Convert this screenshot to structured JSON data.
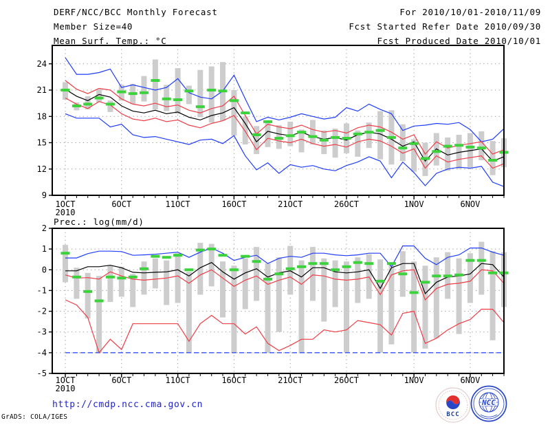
{
  "header": {
    "title": "DERF/NCC/BCC Monthly Forecast",
    "member_size": "Member Size=40",
    "for_range": "For 2010/10/01-2010/11/09",
    "fcst_started": "Fcst Started Refer Date 2010/09/30",
    "fcst_produced": "Fcst Produced Date 2010/10/01"
  },
  "footer": {
    "url": "http://cmdp.ncc.cma.gov.cn",
    "grads_credit": "GrADS: COLA/IGES",
    "logos": {
      "bcc_label": "BCC",
      "ncc_label": "NCC"
    }
  },
  "colors": {
    "blue": "#1e3cff",
    "red": "#f03c46",
    "black": "#000000",
    "green": "#3cd23c",
    "gray_bar": "#cdcdcd",
    "grid": "#999999",
    "url_blue": "#2222cc",
    "logo_blue": "#2846c8",
    "logo_red": "#e03030"
  },
  "chart_data": [
    {
      "type": "line",
      "title": "Mean Surf. Temp.: °C",
      "days": 40,
      "ylim": [
        9,
        26.1
      ],
      "yticks": [
        9,
        12,
        15,
        18,
        21,
        24
      ],
      "grid": true,
      "x_ticks": [
        {
          "day": 1,
          "label": "1OCT",
          "sublabel": "2010"
        },
        {
          "day": 6,
          "label": "6OCT"
        },
        {
          "day": 11,
          "label": "11OCT"
        },
        {
          "day": 16,
          "label": "16OCT"
        },
        {
          "day": 21,
          "label": "21OCT"
        },
        {
          "day": 26,
          "label": "26OCT"
        },
        {
          "day": 32,
          "label": "1NOV"
        },
        {
          "day": 37,
          "label": "6NOV"
        }
      ],
      "series": [
        {
          "name": "blue-upper-max",
          "color": "blue",
          "values": [
            24.7,
            22.8,
            22.8,
            23.0,
            23.4,
            21.3,
            21.6,
            21.3,
            21.0,
            21.3,
            22.3,
            20.7,
            20.2,
            20.0,
            20.9,
            22.7,
            20.0,
            17.4,
            17.9,
            17.6,
            17.9,
            18.3,
            18.0,
            17.7,
            17.9,
            19.0,
            18.6,
            19.4,
            18.8,
            18.3,
            16.4,
            16.9,
            17.0,
            17.2,
            17.1,
            17.3,
            16.5,
            15.1,
            15.4,
            16.6
          ]
        },
        {
          "name": "blue-lower-min",
          "color": "blue",
          "values": [
            18.3,
            17.8,
            17.8,
            17.8,
            16.8,
            17.1,
            15.9,
            15.6,
            15.7,
            15.4,
            15.1,
            14.8,
            15.3,
            15.4,
            14.9,
            15.8,
            13.5,
            11.9,
            12.7,
            11.5,
            12.5,
            12.2,
            12.4,
            12.0,
            11.8,
            12.4,
            12.8,
            13.4,
            12.9,
            11.0,
            12.8,
            11.6,
            10.1,
            11.5,
            12.0,
            12.2,
            12.1,
            12.3,
            10.5,
            10.0
          ]
        },
        {
          "name": "red-upper",
          "color": "red",
          "values": [
            22.1,
            21.1,
            20.6,
            21.2,
            21.0,
            20.0,
            19.4,
            19.2,
            19.5,
            19.1,
            19.3,
            18.7,
            18.4,
            18.9,
            19.2,
            20.3,
            18.1,
            16.0,
            17.1,
            16.8,
            16.6,
            17.0,
            16.5,
            16.2,
            16.4,
            16.1,
            16.7,
            17.0,
            16.8,
            16.2,
            15.4,
            15.9,
            13.7,
            15.1,
            14.4,
            14.7,
            14.9,
            15.1,
            13.7,
            14.2
          ]
        },
        {
          "name": "red-lower",
          "color": "red",
          "values": [
            20.1,
            19.4,
            18.9,
            19.7,
            19.3,
            18.3,
            17.7,
            17.5,
            17.8,
            17.4,
            17.6,
            17.0,
            16.7,
            17.2,
            17.5,
            18.1,
            16.3,
            14.2,
            15.5,
            15.2,
            15.0,
            15.4,
            14.9,
            14.6,
            14.8,
            14.5,
            15.1,
            15.4,
            15.2,
            14.6,
            13.8,
            14.3,
            12.1,
            13.5,
            12.8,
            13.1,
            13.3,
            13.5,
            12.1,
            12.6
          ]
        },
        {
          "name": "ensemble-mean",
          "color": "black",
          "values": [
            21.1,
            20.3,
            19.8,
            20.5,
            20.2,
            19.2,
            18.6,
            18.4,
            18.7,
            18.3,
            18.5,
            17.9,
            17.6,
            18.1,
            18.4,
            19.0,
            17.2,
            15.1,
            16.3,
            16.0,
            15.8,
            16.2,
            15.7,
            15.4,
            15.6,
            15.3,
            15.9,
            16.2,
            16.0,
            15.4,
            14.6,
            15.1,
            12.9,
            14.3,
            13.6,
            13.9,
            14.1,
            14.3,
            12.9,
            13.4
          ]
        }
      ],
      "obs_dashes": {
        "name": "green-dashes",
        "color": "green",
        "values": [
          21.0,
          19.2,
          19.4,
          20.1,
          19.4,
          20.8,
          20.6,
          20.7,
          22.1,
          20.0,
          19.9,
          20.9,
          19.1,
          21.0,
          20.9,
          19.8,
          18.4,
          15.9,
          17.4,
          15.5,
          15.8,
          16.2,
          15.7,
          15.3,
          15.6,
          15.5,
          16.0,
          16.2,
          16.4,
          15.6,
          14.4,
          14.9,
          13.2,
          14.0,
          14.6,
          14.7,
          14.5,
          14.4,
          13.0,
          13.9
        ]
      },
      "spread_bars": {
        "name": "gray-spread-bars",
        "color": "gray_bar",
        "lo": [
          19.9,
          18.7,
          18.8,
          19.6,
          18.5,
          19.8,
          19.4,
          19.7,
          18.8,
          18.6,
          18.3,
          19.4,
          17.9,
          17.3,
          17.5,
          15.8,
          14.8,
          13.7,
          14.5,
          14.3,
          14.6,
          13.9,
          14.8,
          13.7,
          13.3,
          13.8,
          13.4,
          14.4,
          13.1,
          12.5,
          12.9,
          11.7,
          11.2,
          12.4,
          11.8,
          12.0,
          12.2,
          13.0,
          11.3,
          12.2
        ],
        "hi": [
          21.9,
          19.6,
          20.3,
          21.1,
          19.8,
          21.6,
          21.7,
          22.6,
          24.5,
          21.6,
          23.5,
          21.5,
          23.3,
          23.7,
          24.2,
          21.0,
          18.0,
          16.9,
          17.3,
          17.0,
          17.4,
          16.5,
          17.6,
          16.4,
          16.6,
          17.2,
          16.4,
          17.3,
          18.6,
          18.7,
          17.1,
          15.4,
          15.0,
          16.1,
          15.6,
          15.9,
          16.1,
          16.3,
          15.2,
          15.5
        ]
      }
    },
    {
      "type": "line",
      "title": "Prec.: log(mm/d)",
      "days": 40,
      "ylim": [
        -5,
        2
      ],
      "yticks": [
        -5,
        -4,
        -3,
        -2,
        -1,
        0,
        1,
        2
      ],
      "grid": true,
      "x_ticks": [
        {
          "day": 1,
          "label": "1OCT",
          "sublabel": "2010"
        },
        {
          "day": 6,
          "label": "6OCT"
        },
        {
          "day": 11,
          "label": "11OCT"
        },
        {
          "day": 16,
          "label": "16OCT"
        },
        {
          "day": 21,
          "label": "21OCT"
        },
        {
          "day": 26,
          "label": "26OCT"
        },
        {
          "day": 32,
          "label": "1NOV"
        },
        {
          "day": 37,
          "label": "6NOV"
        }
      ],
      "series": [
        {
          "name": "blue-upper-max",
          "color": "blue",
          "values": [
            0.57,
            0.57,
            0.78,
            0.9,
            0.9,
            0.88,
            0.7,
            0.72,
            0.75,
            0.8,
            0.85,
            0.6,
            0.85,
            1.05,
            0.8,
            0.45,
            0.6,
            0.7,
            0.3,
            0.55,
            0.65,
            0.6,
            0.8,
            0.8,
            0.72,
            0.68,
            0.72,
            0.8,
            0.8,
            0.15,
            1.15,
            1.15,
            0.55,
            0.25,
            0.6,
            0.72,
            1.05,
            1.05,
            0.85,
            0.7
          ]
        },
        {
          "name": "blue-lower-min",
          "color": "blue",
          "style": "dashed",
          "values": [
            -4,
            -4,
            -4,
            -4,
            -4,
            -4,
            -4,
            -4,
            -4,
            -4,
            -4,
            -4,
            -4,
            -4,
            -4,
            -4,
            -4,
            -4,
            -4,
            -4,
            -4,
            -4,
            -4,
            -4,
            -4,
            -4,
            -4,
            -4,
            -4,
            -4,
            -4,
            -4,
            -4,
            -4,
            -4,
            -4,
            -4,
            -4,
            -4,
            -4
          ]
        },
        {
          "name": "red-upper",
          "color": "red",
          "values": [
            -0.25,
            -0.4,
            -0.38,
            -0.45,
            -0.1,
            -0.3,
            -0.45,
            -0.5,
            -0.45,
            -0.4,
            -0.3,
            -0.65,
            -0.25,
            0.0,
            -0.4,
            -0.8,
            -0.5,
            -0.3,
            -0.7,
            -0.5,
            -0.35,
            -0.7,
            -0.25,
            -0.3,
            -0.45,
            -0.5,
            -0.45,
            -0.35,
            -1.2,
            -0.25,
            -0.05,
            0.0,
            -1.45,
            -0.9,
            -0.7,
            -0.65,
            -0.55,
            0.0,
            -0.05,
            -0.65
          ]
        },
        {
          "name": "red-lower",
          "color": "red",
          "values": [
            -1.45,
            -1.7,
            -2.3,
            -4.0,
            -3.35,
            -3.85,
            -2.6,
            -2.6,
            -2.6,
            -2.6,
            -2.6,
            -3.45,
            -2.6,
            -2.2,
            -2.6,
            -2.6,
            -3.1,
            -2.75,
            -3.55,
            -3.9,
            -3.65,
            -3.35,
            -3.35,
            -2.9,
            -3.0,
            -2.9,
            -2.45,
            -2.55,
            -2.65,
            -3.15,
            -2.1,
            -2.0,
            -3.55,
            -3.3,
            -2.9,
            -2.6,
            -2.4,
            -1.9,
            -1.9,
            -2.55
          ]
        },
        {
          "name": "ensemble-mean",
          "color": "black",
          "values": [
            -0.05,
            -0.05,
            0.15,
            0.15,
            0.22,
            0.1,
            -0.12,
            -0.15,
            -0.12,
            -0.1,
            0.0,
            -0.3,
            0.1,
            0.35,
            -0.1,
            -0.45,
            -0.15,
            0.05,
            -0.35,
            -0.15,
            -0.05,
            -0.35,
            0.1,
            0.1,
            -0.1,
            -0.15,
            -0.1,
            0.0,
            -0.9,
            0.1,
            0.3,
            0.3,
            -1.15,
            -0.6,
            -0.35,
            -0.3,
            -0.2,
            0.3,
            0.25,
            -0.35
          ]
        }
      ],
      "obs_dashes": {
        "name": "green-dashes",
        "color": "green",
        "values": [
          0.8,
          -0.35,
          -1.05,
          -1.5,
          -0.35,
          -0.4,
          -0.35,
          0.05,
          0.65,
          0.6,
          0.7,
          0.0,
          0.95,
          1.0,
          0.7,
          0.0,
          0.65,
          0.4,
          -0.45,
          -0.2,
          0.05,
          0.15,
          0.3,
          0.3,
          0.0,
          0.15,
          0.35,
          0.3,
          -0.55,
          0.3,
          -0.2,
          -1.1,
          -0.6,
          -0.3,
          -0.3,
          -0.25,
          0.45,
          0.45,
          -0.15,
          -0.15
        ]
      },
      "spread_bars": {
        "name": "gray-spread-bars",
        "color": "gray_bar",
        "lo": [
          -0.6,
          -1.4,
          -2.35,
          -4.0,
          -1.55,
          -1.3,
          -1.8,
          -1.2,
          -0.9,
          -1.7,
          -1.6,
          -4.0,
          -1.2,
          -0.8,
          -2.3,
          -4.0,
          -1.9,
          -1.5,
          -4.0,
          -3.0,
          -1.2,
          -4.0,
          -1.5,
          -2.5,
          -1.8,
          -4.0,
          -1.6,
          -1.4,
          -4.0,
          -3.6,
          -1.3,
          -4.0,
          -3.8,
          -3.3,
          -1.4,
          -3.1,
          -1.6,
          -1.2,
          -3.4,
          -1.8
        ],
        "hi": [
          1.2,
          0.1,
          -0.15,
          -0.3,
          0.2,
          0.15,
          -0.2,
          0.4,
          0.55,
          0.45,
          0.8,
          -0.1,
          1.3,
          1.25,
          0.4,
          0.2,
          0.55,
          1.1,
          0.3,
          0.6,
          1.15,
          0.45,
          1.1,
          0.55,
          0.45,
          0.4,
          0.6,
          0.75,
          0.5,
          0.3,
          0.9,
          0.4,
          0.2,
          0.6,
          0.85,
          0.55,
          0.8,
          1.35,
          0.9,
          0.85
        ]
      }
    }
  ]
}
